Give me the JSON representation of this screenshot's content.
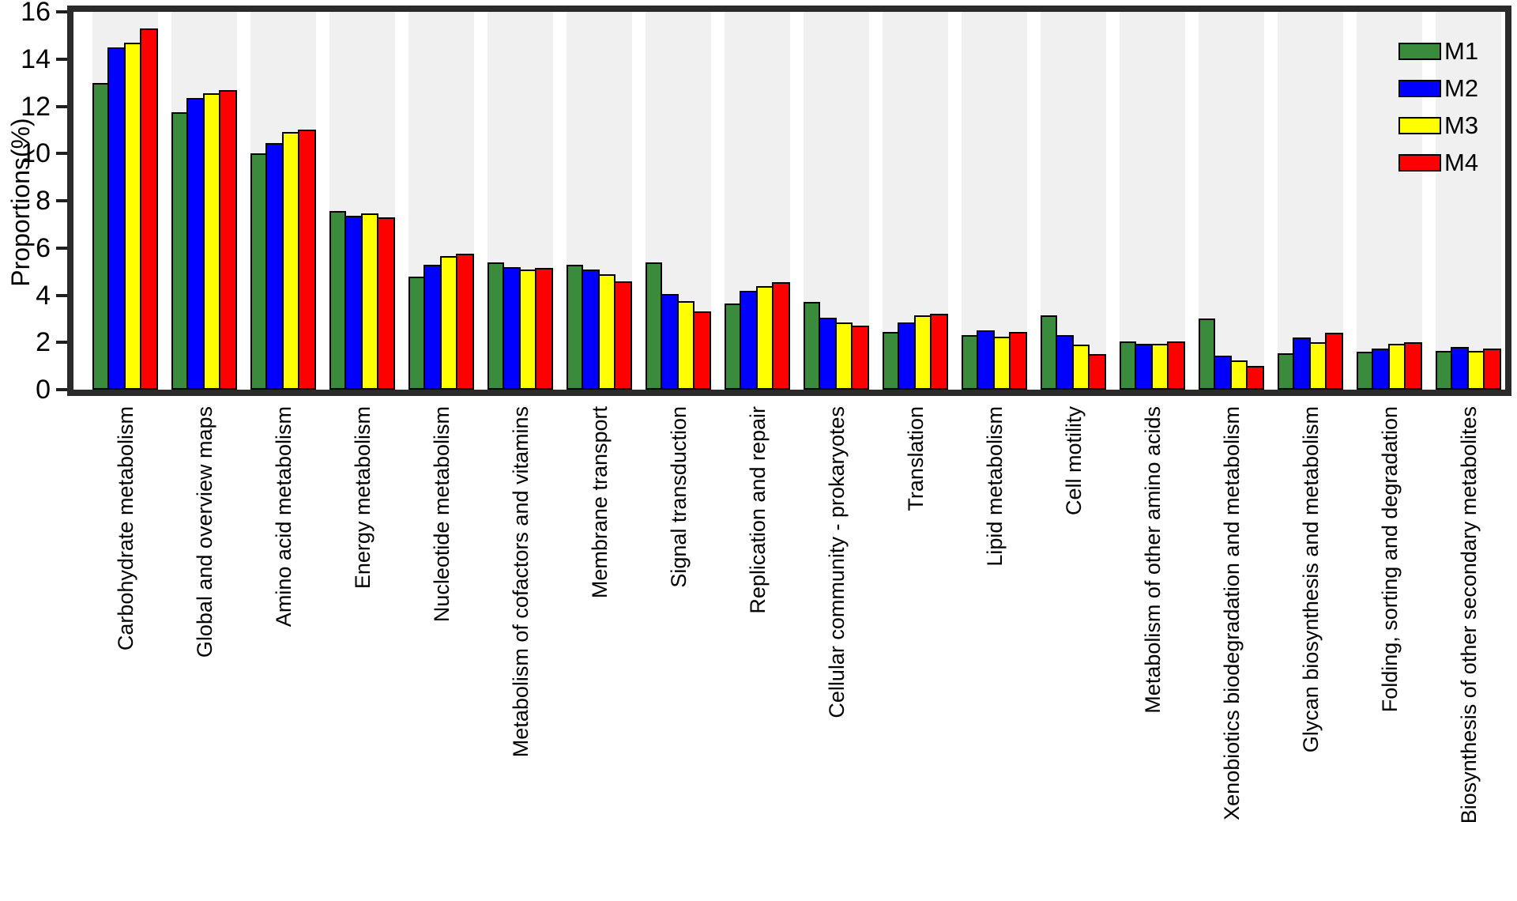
{
  "chart_data": {
    "type": "bar",
    "title": "",
    "xlabel": "",
    "ylabel": "Proportions(%)",
    "ylim": [
      0,
      16
    ],
    "ytick_step": 2,
    "grid": false,
    "legend_position": "top-right",
    "plot_band_color": "#f0f0f0",
    "frame_color": "#2a2a2a",
    "bar_border_color": "#000000",
    "categories": [
      "Carbohydrate metabolism",
      "Global and overview maps",
      "Amino acid metabolism",
      "Energy metabolism",
      "Nucleotide metabolism",
      "Metabolism of cofactors and vitamins",
      "Membrane transport",
      "Signal transduction",
      "Replication and repair",
      "Cellular community - prokaryotes",
      "Translation",
      "Lipid metabolism",
      "Cell motility",
      "Metabolism of other amino acids",
      "Xenobiotics biodegradation and metabolism",
      "Glycan biosynthesis and metabolism",
      "Folding, sorting and degradation",
      "Biosynthesis of other secondary metabolites"
    ],
    "series": [
      {
        "name": "M1",
        "color": "#3a8c3c",
        "values": [
          13.0,
          11.75,
          10.0,
          7.55,
          4.8,
          5.4,
          5.3,
          5.4,
          3.65,
          3.7,
          2.45,
          2.3,
          3.15,
          2.05,
          3.0,
          1.55,
          1.6,
          1.65
        ]
      },
      {
        "name": "M2",
        "color": "#0000ff",
        "values": [
          14.5,
          12.35,
          10.45,
          7.35,
          5.3,
          5.2,
          5.1,
          4.05,
          4.2,
          3.05,
          2.85,
          2.5,
          2.3,
          1.95,
          1.45,
          2.2,
          1.75,
          1.8
        ]
      },
      {
        "name": "M3",
        "color": "#ffff00",
        "values": [
          14.7,
          12.55,
          10.9,
          7.45,
          5.65,
          5.1,
          4.9,
          3.75,
          4.4,
          2.85,
          3.15,
          2.25,
          1.9,
          1.95,
          1.25,
          2.0,
          1.95,
          1.65
        ]
      },
      {
        "name": "M4",
        "color": "#ff0000",
        "values": [
          15.3,
          12.7,
          11.0,
          7.3,
          5.75,
          5.15,
          4.6,
          3.3,
          4.55,
          2.7,
          3.2,
          2.45,
          1.5,
          2.05,
          1.0,
          2.4,
          2.0,
          1.75
        ]
      }
    ]
  }
}
